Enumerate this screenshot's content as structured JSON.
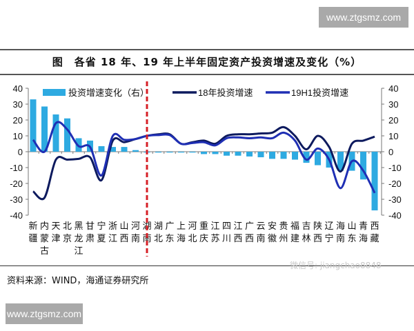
{
  "watermark_top": "www.ztgsmz.com",
  "watermark_bottom": "www.ztgsmz.com",
  "wechat_watermark": "微信号: jiangchao8848",
  "title": "图　各省 18 年、19 年上半年固定资产投资增速及变化（%）",
  "source": "资料来源：WIND，海通证券研究所",
  "colors": {
    "bar": "#2eaae1",
    "line_2018": "#0d1a5e",
    "line_19h1": "#1f2fb4",
    "divider": "#d61f26"
  },
  "chart_data": {
    "type": "bar+line",
    "title": "图　各省 18 年、19 年上半年固定资产投资增速及变化（%）",
    "categories": [
      [
        "新",
        "疆"
      ],
      [
        "内",
        "蒙",
        "古"
      ],
      [
        "天",
        "津"
      ],
      [
        "北",
        "京"
      ],
      [
        "黑",
        "龙",
        "江"
      ],
      [
        "甘",
        "肃"
      ],
      [
        "宁",
        "夏"
      ],
      [
        "浙",
        "江"
      ],
      [
        "山",
        "西"
      ],
      [
        "河",
        "南"
      ],
      [
        "湖",
        "南"
      ],
      [
        "湖",
        "北"
      ],
      [
        "广",
        "东"
      ],
      [
        "上",
        "海"
      ],
      [
        "河",
        "北"
      ],
      [
        "重",
        "庆"
      ],
      [
        "江",
        "苏"
      ],
      [
        "四",
        "川"
      ],
      [
        "江",
        "西"
      ],
      [
        "广",
        "西"
      ],
      [
        "云",
        "南"
      ],
      [
        "安",
        "徽"
      ],
      [
        "贵",
        "州"
      ],
      [
        "福",
        "建"
      ],
      [
        "吉",
        "林"
      ],
      [
        "陕",
        "西"
      ],
      [
        "辽",
        "宁"
      ],
      [
        "海",
        "南"
      ],
      [
        "山",
        "东"
      ],
      [
        "青",
        "海"
      ],
      [
        "西",
        "藏"
      ]
    ],
    "left_axis": {
      "ylim": [
        -40,
        40
      ],
      "ticks": [
        "40",
        "30",
        "20",
        "10",
        "0",
        "-10",
        "-20",
        "-30",
        "-40"
      ]
    },
    "right_axis": {
      "ylim": [
        -40,
        40
      ],
      "ticks": [
        "40",
        "30",
        "20",
        "10",
        "0",
        "-10",
        "-20",
        "-30",
        "-40"
      ]
    },
    "divider_after_category": "湖南",
    "legend_position": "top",
    "series": [
      {
        "name": "投资增速变化（右）",
        "type": "bar",
        "axis": "right",
        "values": [
          33,
          28.5,
          23.5,
          21,
          8.5,
          7,
          3.5,
          3,
          3,
          1,
          0,
          -0.5,
          -0.5,
          -0.5,
          -0.5,
          -1.5,
          -1.5,
          -2.5,
          -2.5,
          -3,
          -3.5,
          -4.5,
          -4.5,
          -5,
          -7,
          -8.5,
          -10,
          -12,
          -12,
          -17.5,
          -37
        ]
      },
      {
        "name": "18年投资增速",
        "type": "line",
        "axis": "left",
        "values": [
          -25,
          -29,
          -5,
          -5,
          -4.5,
          -3.5,
          -18,
          7,
          6,
          8,
          10,
          11,
          11,
          5,
          6,
          7,
          5,
          10,
          11,
          11,
          11.5,
          12,
          15.5,
          10,
          1.5,
          10,
          3,
          -12.5,
          5,
          7,
          9.5
        ]
      },
      {
        "name": "19H1投资增速",
        "type": "line",
        "axis": "left",
        "values": [
          7.5,
          0,
          18,
          14,
          3.5,
          3,
          -15,
          10,
          7.5,
          8,
          10,
          10.5,
          10.5,
          5,
          5.5,
          6,
          4,
          8.5,
          9,
          8.5,
          9,
          8.5,
          12,
          7,
          -5,
          2,
          -5,
          -23,
          -6,
          -12,
          -26
        ]
      }
    ]
  }
}
